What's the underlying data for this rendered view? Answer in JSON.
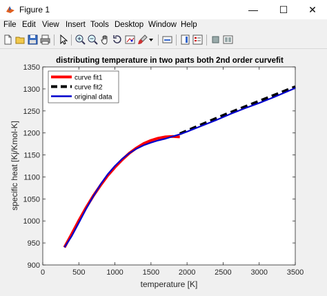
{
  "window": {
    "title": "Figure 1",
    "minimize": "—",
    "maximize": "☐",
    "close": "✕"
  },
  "menu": [
    "File",
    "Edit",
    "View",
    "Insert",
    "Tools",
    "Desktop",
    "Window",
    "Help"
  ],
  "toolbar_icons": [
    "new-figure-icon",
    "open-file-icon",
    "save-icon",
    "print-icon",
    "select-arrow-icon",
    "zoom-in-icon",
    "zoom-out-icon",
    "pan-hand-icon",
    "rotate-3d-icon",
    "data-cursor-icon",
    "brush-icon",
    "brush-dropdown-icon",
    "link-plot-icon",
    "insert-colorbar-icon",
    "insert-legend-icon",
    "hide-plot-tools-icon",
    "show-plot-tools-icon"
  ],
  "chart_data": {
    "type": "line",
    "title": "distributing temperature in two parts both 2nd order curvefit",
    "xlabel": "temperature [K]",
    "ylabel": "specific heat [Kj/Kmol-K]",
    "xlim": [
      0,
      3500
    ],
    "ylim": [
      900,
      1350
    ],
    "xticks": [
      0,
      500,
      1000,
      1500,
      2000,
      2500,
      3000,
      3500
    ],
    "yticks": [
      900,
      950,
      1000,
      1050,
      1100,
      1150,
      1200,
      1250,
      1300,
      1350
    ],
    "grid": false,
    "legend_position": "top-left",
    "series": [
      {
        "name": "curve fit1",
        "color": "#ff0000",
        "style": "solid",
        "x": [
          300,
          400,
          500,
          600,
          700,
          800,
          900,
          1000,
          1100,
          1200,
          1300,
          1400,
          1500,
          1600,
          1700,
          1800,
          1900
        ],
        "y": [
          940,
          970,
          1001,
          1030,
          1057,
          1081,
          1103,
          1122,
          1139,
          1154,
          1166,
          1176,
          1183,
          1188,
          1191,
          1192,
          1191
        ]
      },
      {
        "name": "curve fit2",
        "color": "#000000",
        "style": "dashed",
        "x": [
          1900,
          2100,
          2300,
          2500,
          2700,
          2900,
          3100,
          3300,
          3500
        ],
        "y": [
          1198,
          1212,
          1226,
          1240,
          1253,
          1266,
          1279,
          1292,
          1305
        ]
      },
      {
        "name": "original data",
        "color": "#0000cc",
        "style": "solid",
        "x": [
          300,
          400,
          500,
          600,
          700,
          800,
          900,
          1000,
          1100,
          1200,
          1300,
          1400,
          1500,
          1600,
          1700,
          1800,
          1900,
          2000,
          2200,
          2400,
          2600,
          2800,
          3000,
          3200,
          3400,
          3500
        ],
        "y": [
          940,
          965,
          996,
          1027,
          1056,
          1083,
          1106,
          1125,
          1141,
          1154,
          1164,
          1172,
          1178,
          1183,
          1187,
          1192,
          1197,
          1203,
          1216,
          1229,
          1243,
          1256,
          1268,
          1281,
          1295,
          1302
        ]
      }
    ]
  }
}
